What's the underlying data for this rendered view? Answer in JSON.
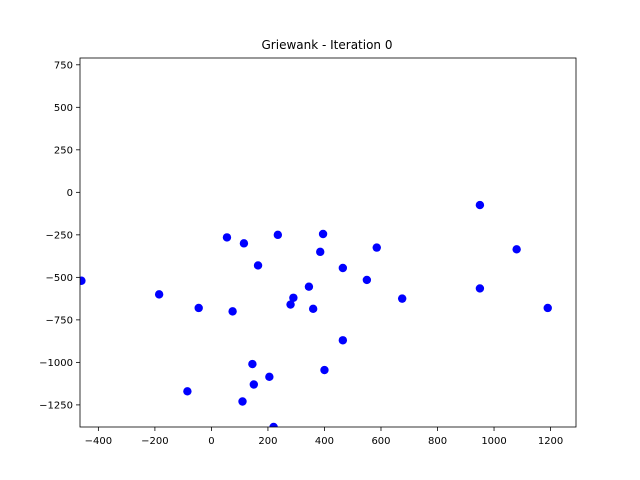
{
  "chart_data": {
    "type": "scatter",
    "title": "Griewank - Iteration 0",
    "xlabel": "",
    "ylabel": "",
    "xlim": [
      -465,
      1290
    ],
    "ylim": [
      -1380,
      790
    ],
    "x_ticks": [
      -400,
      -200,
      0,
      200,
      400,
      600,
      800,
      1000,
      1200
    ],
    "y_ticks": [
      750,
      500,
      250,
      0,
      -250,
      -500,
      -750,
      -1000,
      -1250
    ],
    "grid": false,
    "marker_color": "#0000ff",
    "points": [
      {
        "x": -460,
        "y": -520
      },
      {
        "x": -185,
        "y": -600
      },
      {
        "x": -85,
        "y": -1170
      },
      {
        "x": -45,
        "y": -680
      },
      {
        "x": 55,
        "y": -265
      },
      {
        "x": 75,
        "y": -700
      },
      {
        "x": 110,
        "y": -1230
      },
      {
        "x": 115,
        "y": -300
      },
      {
        "x": 145,
        "y": -1010
      },
      {
        "x": 150,
        "y": -1130
      },
      {
        "x": 165,
        "y": -430
      },
      {
        "x": 205,
        "y": -1085
      },
      {
        "x": 220,
        "y": -1380
      },
      {
        "x": 235,
        "y": -250
      },
      {
        "x": 280,
        "y": -660
      },
      {
        "x": 290,
        "y": -620
      },
      {
        "x": 345,
        "y": -555
      },
      {
        "x": 360,
        "y": -685
      },
      {
        "x": 385,
        "y": -350
      },
      {
        "x": 395,
        "y": -245
      },
      {
        "x": 400,
        "y": -1045
      },
      {
        "x": 465,
        "y": -870
      },
      {
        "x": 465,
        "y": -445
      },
      {
        "x": 550,
        "y": -515
      },
      {
        "x": 585,
        "y": -325
      },
      {
        "x": 675,
        "y": -625
      },
      {
        "x": 950,
        "y": -75
      },
      {
        "x": 950,
        "y": -565
      },
      {
        "x": 1080,
        "y": -335
      },
      {
        "x": 1190,
        "y": -680
      }
    ]
  }
}
